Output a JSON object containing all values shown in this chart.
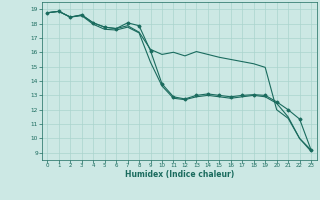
{
  "title": "",
  "xlabel": "Humidex (Indice chaleur)",
  "bg_color": "#cce8e4",
  "grid_color": "#aad4ce",
  "line_color": "#1a6b5e",
  "xlim": [
    -0.5,
    23.5
  ],
  "ylim": [
    8.5,
    19.5
  ],
  "xticks": [
    0,
    1,
    2,
    3,
    4,
    5,
    6,
    7,
    8,
    9,
    10,
    11,
    12,
    13,
    14,
    15,
    16,
    17,
    18,
    19,
    20,
    21,
    22,
    23
  ],
  "yticks": [
    9,
    10,
    11,
    12,
    13,
    14,
    15,
    16,
    17,
    18,
    19
  ],
  "line1_x": [
    0,
    1,
    2,
    3,
    4,
    5,
    6,
    7,
    8,
    9,
    10,
    11,
    12,
    13,
    14,
    15,
    16,
    17,
    18,
    19,
    20,
    21,
    22,
    23
  ],
  "line1_y": [
    18.75,
    18.85,
    18.45,
    18.6,
    18.05,
    17.75,
    17.65,
    17.85,
    17.4,
    16.2,
    15.85,
    16.0,
    15.75,
    16.05,
    15.85,
    15.65,
    15.5,
    15.35,
    15.2,
    14.95,
    12.0,
    11.4,
    10.0,
    9.2
  ],
  "line2_x": [
    0,
    1,
    2,
    3,
    4,
    5,
    6,
    7,
    8,
    9,
    10,
    11,
    12,
    13,
    14,
    15,
    16,
    17,
    18,
    19,
    20,
    21,
    22,
    23
  ],
  "line2_y": [
    18.75,
    18.85,
    18.45,
    18.6,
    18.05,
    17.75,
    17.65,
    18.05,
    17.85,
    16.1,
    13.8,
    12.9,
    12.75,
    13.0,
    13.1,
    13.0,
    12.9,
    13.0,
    13.05,
    13.0,
    12.55,
    12.0,
    11.35,
    9.2
  ],
  "line3_x": [
    0,
    1,
    2,
    3,
    4,
    5,
    6,
    7,
    8,
    9,
    10,
    11,
    12,
    13,
    14,
    15,
    16,
    17,
    18,
    19,
    20,
    21,
    22,
    23
  ],
  "line3_y": [
    18.75,
    18.85,
    18.45,
    18.55,
    17.95,
    17.6,
    17.55,
    17.75,
    17.35,
    15.3,
    13.65,
    12.8,
    12.7,
    12.9,
    13.0,
    12.9,
    12.8,
    12.9,
    13.0,
    12.9,
    12.45,
    11.5,
    10.0,
    9.1
  ]
}
